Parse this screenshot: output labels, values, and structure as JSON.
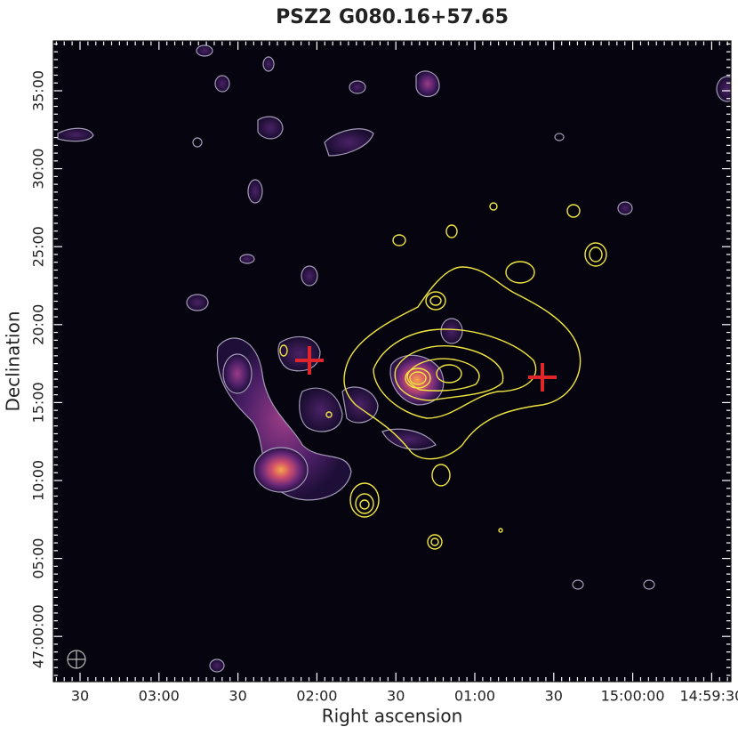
{
  "title": "PSZ2 G080.16+57.65",
  "x_axis": {
    "label": "Right ascension",
    "ticks": [
      "30",
      "03:00",
      "30",
      "02:00",
      "30",
      "01:00",
      "30",
      "15:00:00",
      "14:59:30"
    ]
  },
  "y_axis": {
    "label": "Declination",
    "ticks": [
      "35:00",
      "30:00",
      "25:00",
      "20:00",
      "15:00",
      "10:00",
      "05:00",
      "47:00:00"
    ]
  }
}
